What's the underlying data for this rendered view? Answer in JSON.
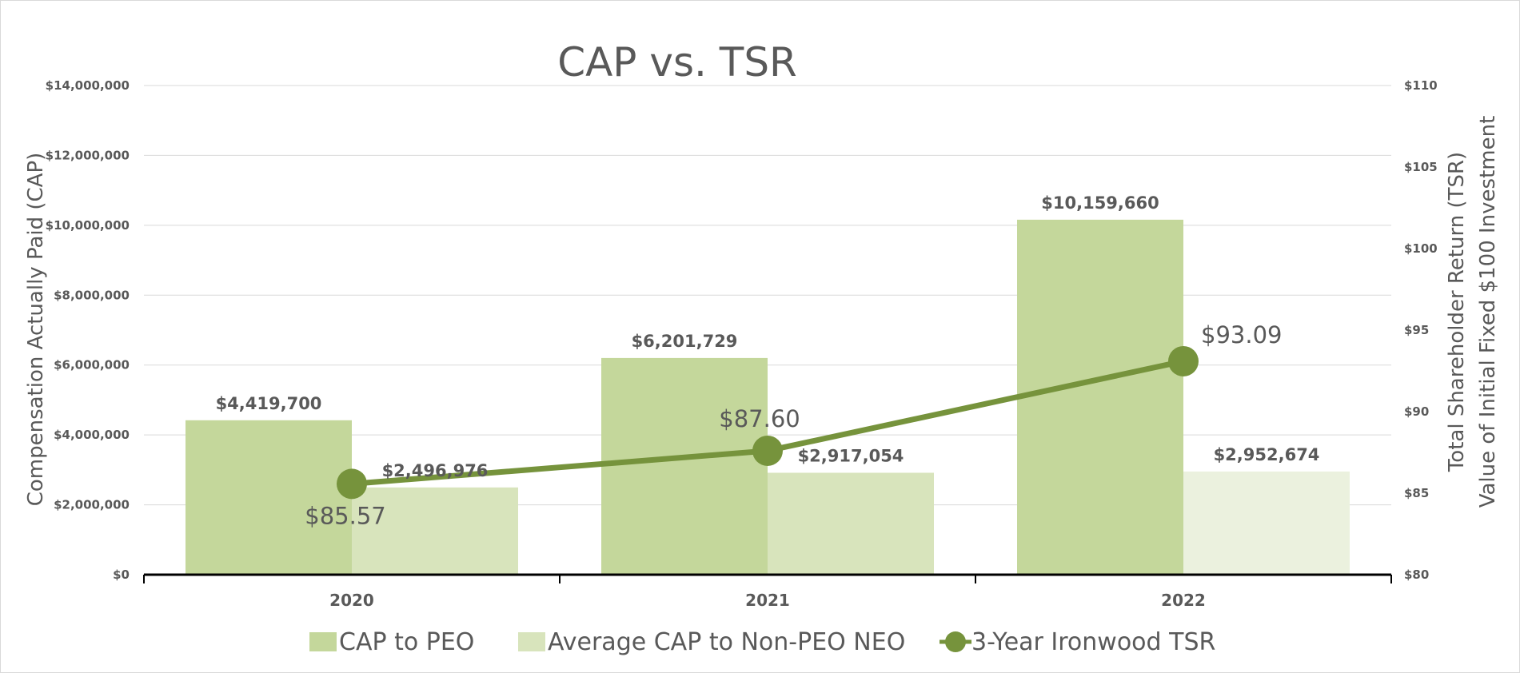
{
  "chart_data": {
    "type": "bar",
    "title": "CAP vs. TSR",
    "categories": [
      "2020",
      "2021",
      "2022"
    ],
    "ylabel": "Compensation Actually Paid (CAP)",
    "y2label_lines": [
      "Total Shareholder Return (TSR)",
      "Value of Initial Fixed $100 Investment"
    ],
    "ylim": [
      0,
      14000000
    ],
    "y_ticks": [
      0,
      2000000,
      4000000,
      6000000,
      8000000,
      10000000,
      12000000,
      14000000
    ],
    "y_tick_labels": [
      "$0",
      "$2,000,000",
      "$4,000,000",
      "$6,000,000",
      "$8,000,000",
      "$10,000,000",
      "$12,000,000",
      "$14,000,000"
    ],
    "y2lim": [
      80,
      110
    ],
    "y2_ticks": [
      80,
      85,
      90,
      95,
      100,
      105,
      110
    ],
    "y2_tick_labels": [
      "$80",
      "$85",
      "$90",
      "$95",
      "$100",
      "$105",
      "$110"
    ],
    "series": [
      {
        "name": "CAP to PEO",
        "kind": "bar",
        "axis": "left",
        "color": "#c4d79b",
        "values": [
          4419700,
          6201729,
          10159660
        ],
        "labels": [
          "$4,419,700",
          "$6,201,729",
          "$10,159,660"
        ]
      },
      {
        "name": "Average CAP to Non-PEO NEO",
        "kind": "bar",
        "axis": "left",
        "colors": [
          "#d8e4bc",
          "#d8e4bc",
          "#ebf1de"
        ],
        "values": [
          2496976,
          2917054,
          2952674
        ],
        "labels": [
          "$2,496,976",
          "$2,917,054",
          "$2,952,674"
        ]
      },
      {
        "name": "3-Year Ironwood TSR",
        "kind": "line",
        "axis": "right",
        "color": "#76933c",
        "values": [
          85.57,
          87.6,
          93.09
        ],
        "labels": [
          "$85.57",
          "$87.60",
          "$93.09"
        ]
      }
    ],
    "legend_position": "bottom",
    "grid": true
  }
}
